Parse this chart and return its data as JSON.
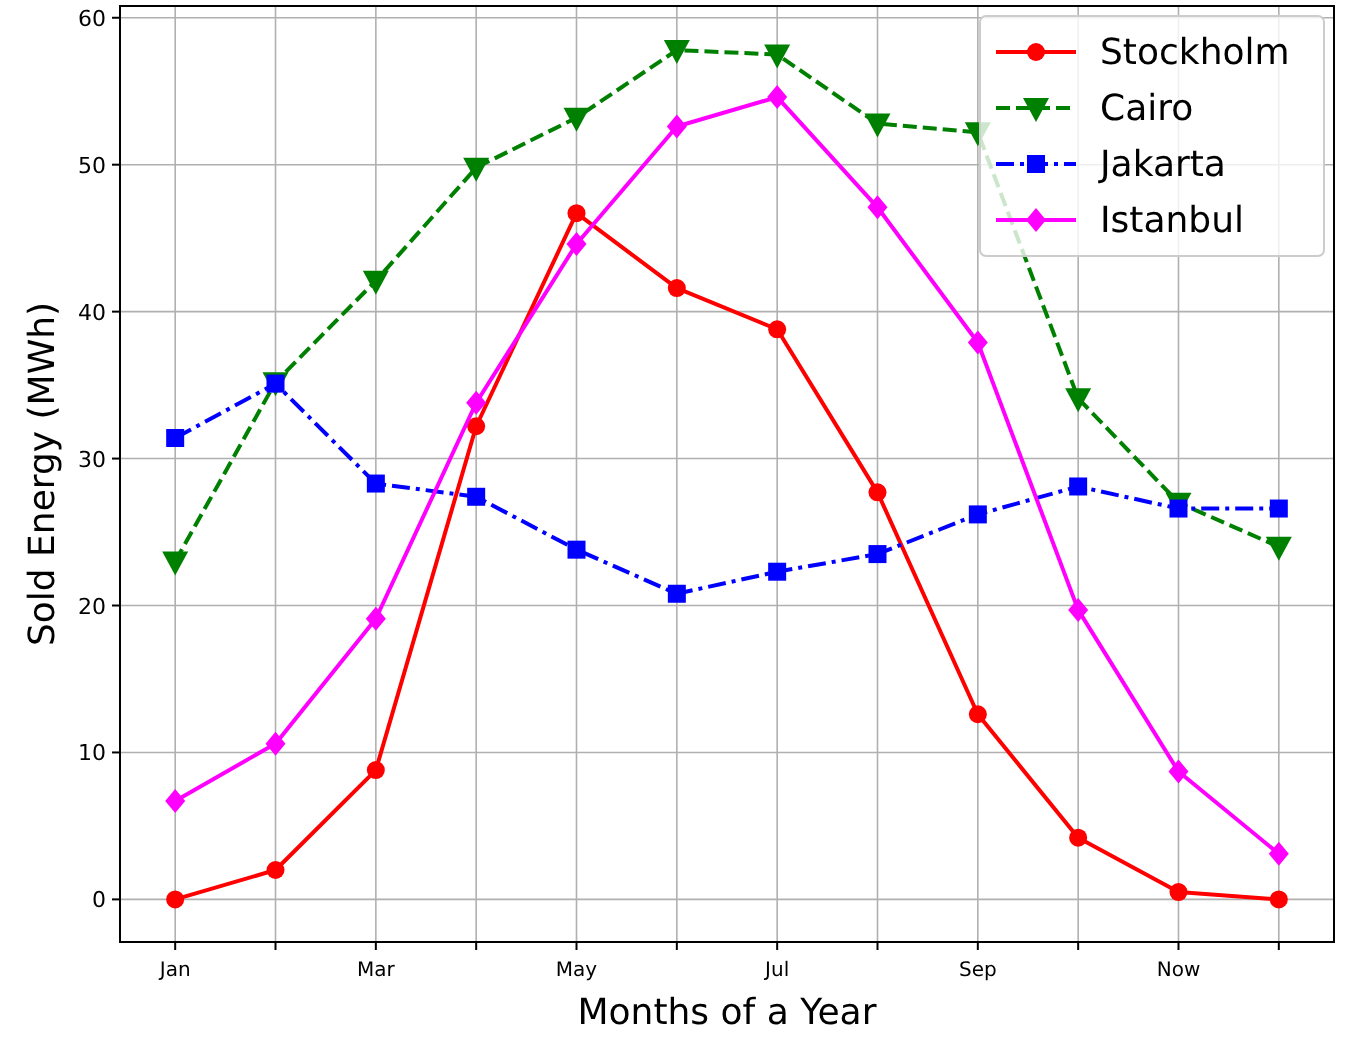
{
  "chart_data": {
    "type": "line",
    "xlabel": "Months of a Year",
    "ylabel": "Sold Energy (MWh)",
    "categories": [
      "Jan",
      null,
      "Mar",
      null,
      "May",
      null,
      "Jul",
      null,
      "Sep",
      null,
      "Now",
      null
    ],
    "ylim": [
      -2.9,
      60.8
    ],
    "yticks": [
      0,
      10,
      20,
      30,
      40,
      50,
      60
    ],
    "grid": true,
    "legend": "top right",
    "series": [
      {
        "name": "Stockholm",
        "color": "#ff0000",
        "marker": "circle",
        "line_style": "solid",
        "values": [
          0,
          2,
          8.8,
          32.2,
          46.7,
          41.6,
          38.8,
          27.7,
          12.6,
          4.2,
          0.5,
          0
        ]
      },
      {
        "name": "Cairo",
        "color": "#008000",
        "marker": "triangle_down",
        "line_style": "dashed",
        "values": [
          23,
          35.2,
          42.1,
          49.8,
          53.2,
          57.8,
          57.5,
          52.8,
          52.2,
          34.1,
          27,
          24
        ]
      },
      {
        "name": "Jakarta",
        "color": "#0000ff",
        "marker": "square",
        "line_style": "dashdot",
        "values": [
          31.4,
          35.1,
          28.3,
          27.4,
          23.8,
          20.8,
          22.3,
          23.5,
          26.2,
          28.1,
          26.6,
          26.6
        ]
      },
      {
        "name": "Istanbul",
        "color": "#ff00ff",
        "marker": "diamond",
        "line_style": "solid",
        "values": [
          6.7,
          10.6,
          19.1,
          33.8,
          44.6,
          52.6,
          54.6,
          47.1,
          37.9,
          19.7,
          8.7,
          3.1
        ]
      }
    ]
  }
}
